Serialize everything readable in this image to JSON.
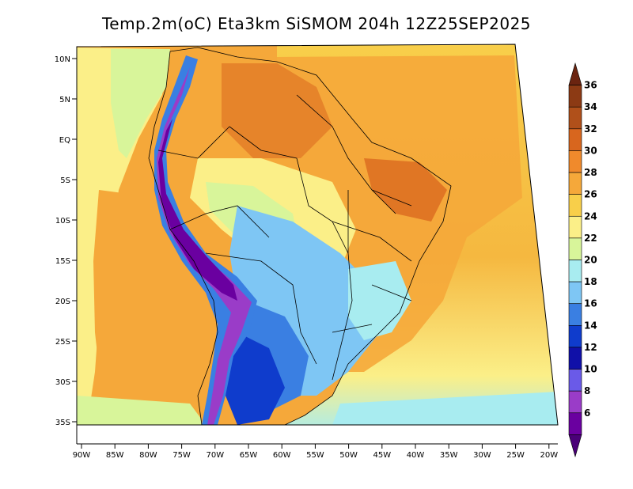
{
  "title": "Temp.2m(oC) Eta3km SiSMOM 204h 12Z25SEP2025",
  "map": {
    "lat_ticks": [
      "10N",
      "5N",
      "EQ",
      "5S",
      "10S",
      "15S",
      "20S",
      "25S",
      "30S",
      "35S"
    ],
    "lon_ticks": [
      "90W",
      "85W",
      "80W",
      "75W",
      "70W",
      "65W",
      "60W",
      "55W",
      "50W",
      "45W",
      "40W",
      "35W",
      "30W",
      "25W",
      "20W"
    ]
  },
  "colorbar": {
    "labels": [
      "36",
      "34",
      "32",
      "30",
      "28",
      "26",
      "24",
      "22",
      "20",
      "18",
      "16",
      "14",
      "12",
      "10",
      "8",
      "6"
    ],
    "colors": [
      "#6b2410",
      "#8c3a14",
      "#b0501a",
      "#d8661e",
      "#f08a2c",
      "#f5a83a",
      "#f8cf4a",
      "#fbef88",
      "#d8f59a",
      "#a8ecf0",
      "#7ec6f4",
      "#3a7fe2",
      "#0f3ccc",
      "#1010a8",
      "#6a5ae8",
      "#9a3cc8",
      "#6a00a0",
      "#4a0078"
    ]
  }
}
